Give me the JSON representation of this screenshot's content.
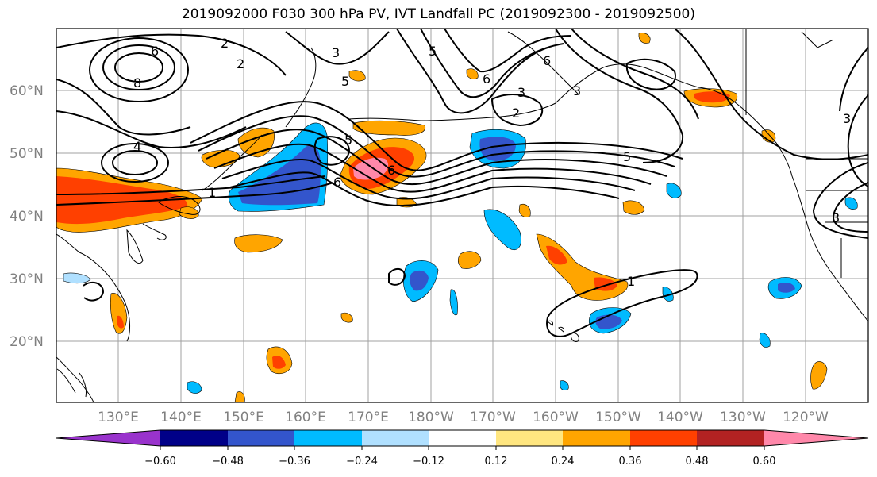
{
  "title": "2019092000 F030 300 hPa PV, IVT Landfall PC (2019092300 - 2019092500)",
  "map": {
    "lat_labels": [
      "60°N",
      "50°N",
      "40°N",
      "30°N",
      "20°N"
    ],
    "lon_labels": [
      "130°E",
      "140°E",
      "150°E",
      "160°E",
      "170°E",
      "180°W",
      "170°W",
      "160°W",
      "150°W",
      "140°W",
      "130°W",
      "120°W"
    ],
    "contour_labels": [
      "8",
      "6",
      "2",
      "3",
      "2",
      "5",
      "6",
      "6",
      "3",
      "2",
      "3",
      "5",
      "4",
      "5",
      "5",
      "6",
      "6",
      "1",
      "3",
      "3",
      "1"
    ]
  },
  "colorbar": {
    "tick_labels": [
      "−0.60",
      "−0.48",
      "−0.36",
      "−0.24",
      "−0.12",
      "0.12",
      "0.24",
      "0.36",
      "0.48",
      "0.60"
    ],
    "colors": [
      "#9933cc",
      "#000088",
      "#3355cc",
      "#00bbff",
      "#b0e0ff",
      "#ffffff",
      "#ffe680",
      "#ffa500",
      "#ff4000",
      "#b22222",
      "#ff88aa"
    ]
  }
}
